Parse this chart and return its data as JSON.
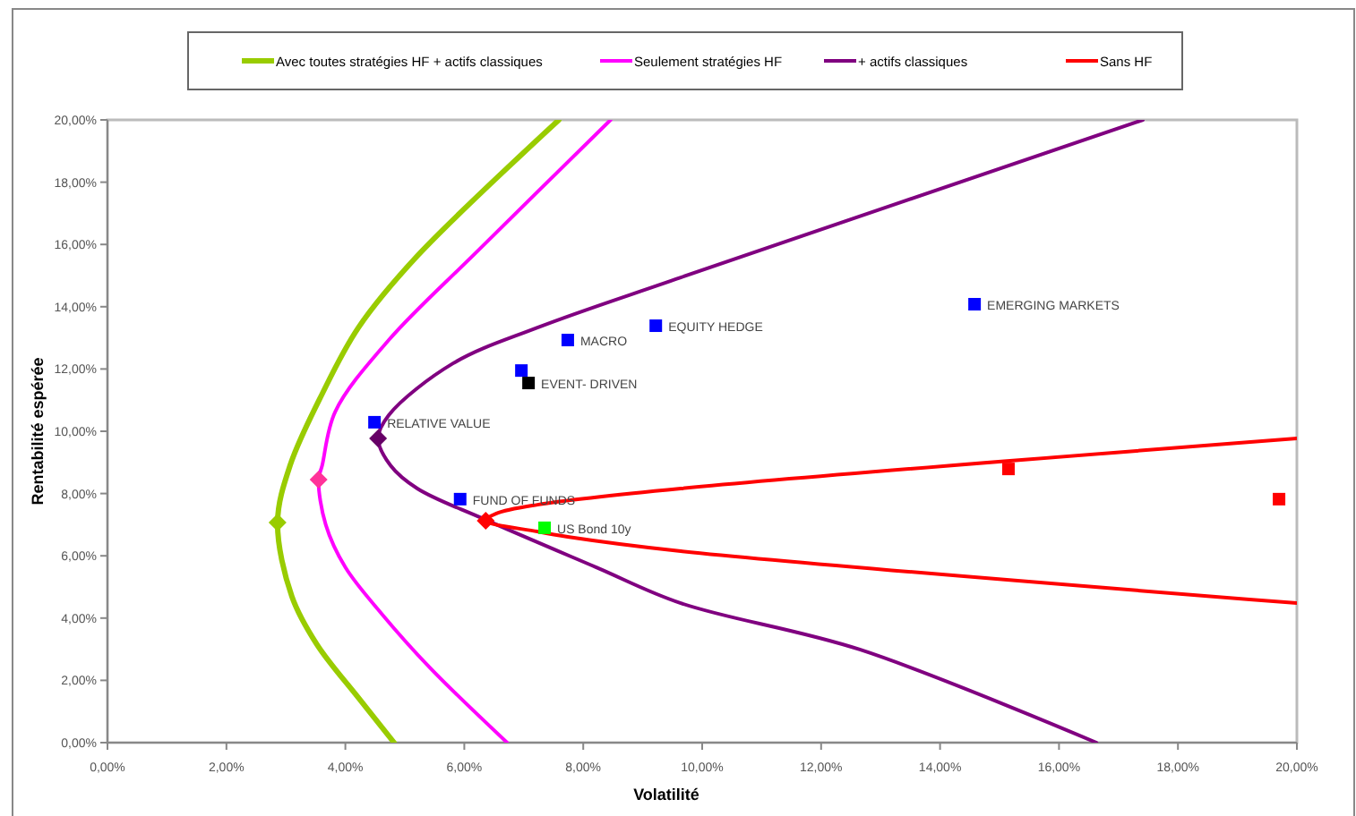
{
  "chart_data": {
    "type": "line",
    "xlabel": "Volatilité",
    "ylabel": "Rentabilité espérée",
    "xlim": [
      0,
      20
    ],
    "ylim": [
      0,
      20
    ],
    "xticks": [
      {
        "value": 0,
        "label": "0,00%"
      },
      {
        "value": 2,
        "label": "2,00%"
      },
      {
        "value": 4,
        "label": "4,00%"
      },
      {
        "value": 6,
        "label": "6,00%"
      },
      {
        "value": 8,
        "label": "8,00%"
      },
      {
        "value": 10,
        "label": "10,00%"
      },
      {
        "value": 12,
        "label": "12,00%"
      },
      {
        "value": 14,
        "label": "14,00%"
      },
      {
        "value": 16,
        "label": "16,00%"
      },
      {
        "value": 18,
        "label": "18,00%"
      },
      {
        "value": 20,
        "label": "20,00%"
      }
    ],
    "yticks": [
      {
        "value": 0,
        "label": "0,00%"
      },
      {
        "value": 2,
        "label": "2,00%"
      },
      {
        "value": 4,
        "label": "4,00%"
      },
      {
        "value": 6,
        "label": "6,00%"
      },
      {
        "value": 8,
        "label": "8,00%"
      },
      {
        "value": 10,
        "label": "10,00%"
      },
      {
        "value": 12,
        "label": "12,00%"
      },
      {
        "value": 14,
        "label": "14,00%"
      },
      {
        "value": 16,
        "label": "16,00%"
      },
      {
        "value": 18,
        "label": "18,00%"
      },
      {
        "value": 20,
        "label": "20,00%"
      }
    ],
    "grid": false,
    "legend": "top",
    "series": [
      {
        "name": "Avec toutes stratégies HF + actifs classiques",
        "color": "#99cc00",
        "x": [
          7.59,
          5.21,
          4.22,
          3.61,
          3.07,
          2.86,
          3.1,
          3.52,
          4.22,
          4.82
        ],
        "values": [
          20,
          15.63,
          13.33,
          11.2,
          8.9,
          7.07,
          4.7,
          3.16,
          1.44,
          0
        ]
      },
      {
        "name": "Seulement stratégies HF",
        "color": "#ff00ff",
        "x": [
          8.46,
          6.23,
          4.73,
          3.83,
          3.61,
          3.55,
          3.67,
          4.0,
          4.61,
          5.42,
          6.72
        ],
        "values": [
          20,
          15.8,
          12.93,
          10.63,
          8.9,
          8.45,
          7.0,
          5.63,
          4.14,
          2.41,
          0
        ]
      },
      {
        "name": "+ actifs classiques",
        "color": "#800080",
        "x": [
          17.41,
          9.64,
          7.23,
          5.81,
          4.73,
          4.55,
          4.76,
          5.21,
          6.33,
          8.22,
          9.64,
          12.65,
          16.63
        ],
        "values": [
          20,
          14.94,
          13.33,
          12.18,
          10.52,
          9.77,
          8.9,
          8.16,
          7.18,
          5.63,
          4.48,
          2.99,
          0
        ]
      },
      {
        "name": "Sans HF",
        "color": "#ff0000",
        "x": [
          20,
          9.64,
          7.23,
          6.54,
          6.36,
          7.23,
          7.74,
          9.64,
          20
        ],
        "values": [
          9.77,
          8.16,
          7.64,
          7.36,
          7.13,
          6.78,
          6.61,
          6.15,
          4.48
        ]
      },
      {
        "type": "scatter",
        "marker": "diamond",
        "colors": [
          "#99cc00",
          "#ff3399",
          "#660066",
          "#ff0000"
        ],
        "x": [
          2.86,
          3.55,
          4.55,
          6.36
        ],
        "values": [
          7.07,
          8.45,
          9.77,
          7.13
        ]
      },
      {
        "type": "scatter",
        "marker": "square",
        "colors": [
          "#0000ff",
          "#0000ff",
          "#0000ff",
          "#0000ff",
          "#000000",
          "#0000ff",
          "#0000ff",
          "#00ff00",
          "#ff0000",
          "#ff0000"
        ],
        "x": [
          4.49,
          7.74,
          9.22,
          6.96,
          7.08,
          14.58,
          5.93,
          7.35,
          15.15,
          19.7
        ],
        "values": [
          10.29,
          12.93,
          13.39,
          11.95,
          11.55,
          14.08,
          7.82,
          6.9,
          8.79,
          7.82
        ]
      }
    ],
    "annotations": [
      {
        "text": "RELATIVE VALUE",
        "x": 4.49,
        "y": 10.29
      },
      {
        "text": "MACRO",
        "x": 7.74,
        "y": 12.93
      },
      {
        "text": "EQUITY HEDGE",
        "x": 9.22,
        "y": 13.39
      },
      {
        "text": "EVENT- DRIVEN",
        "x": 7.08,
        "y": 11.55
      },
      {
        "text": "EMERGING MARKETS",
        "x": 14.58,
        "y": 14.08
      },
      {
        "text": "FUND OF FUNDS",
        "x": 5.93,
        "y": 7.82
      },
      {
        "text": "US Bond 10y",
        "x": 7.35,
        "y": 6.9
      }
    ]
  }
}
